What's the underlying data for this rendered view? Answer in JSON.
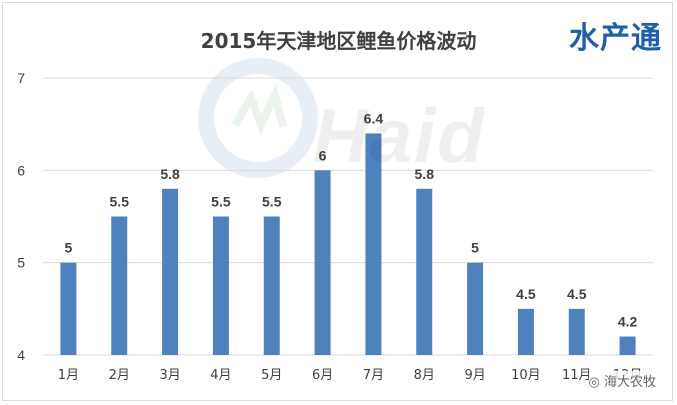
{
  "brand": "水产通",
  "watermark": "Haid",
  "social_handle": "海大农牧",
  "chart_data": {
    "type": "bar",
    "title": "2015年天津地区鲤鱼价格波动",
    "categories": [
      "1月",
      "2月",
      "3月",
      "4月",
      "5月",
      "6月",
      "7月",
      "8月",
      "9月",
      "10月",
      "11月",
      "12月"
    ],
    "values": [
      5,
      5.5,
      5.8,
      5.5,
      5.5,
      6,
      6.4,
      5.8,
      5,
      4.5,
      4.5,
      4.2
    ],
    "value_labels": [
      "5",
      "5.5",
      "5.8",
      "5.5",
      "5.5",
      "6",
      "6.4",
      "5.8",
      "5",
      "4.5",
      "4.5",
      "4.2"
    ],
    "yticks": [
      "4",
      "5",
      "6",
      "7"
    ],
    "ylim": [
      4,
      7
    ],
    "grid": true,
    "bar_color": "#4f81bd",
    "grid_color": "#d9d9d9",
    "label_color": "#404040"
  }
}
